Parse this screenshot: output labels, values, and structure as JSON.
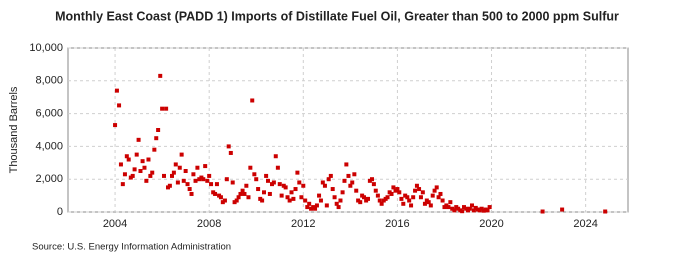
{
  "chart_data": {
    "type": "scatter",
    "title": "Monthly East Coast (PADD 1) Imports of Distillate Fuel Oil, Greater than 500 to 2000 ppm Sulfur",
    "y_label": "Thousand Barrels",
    "source": "Source: U.S. Energy Information Administration",
    "color": "#cc0000",
    "grid": true,
    "xlim": [
      2002,
      2025.8
    ],
    "ylim": [
      0,
      10000
    ],
    "xticks": [
      2004,
      2008,
      2012,
      2016,
      2020,
      2024
    ],
    "yticks": [
      0,
      {
        "value": 2000,
        "label": "2,000"
      },
      {
        "value": 4000,
        "label": "4,000"
      },
      {
        "value": 6000,
        "label": "6,000"
      },
      {
        "value": 8000,
        "label": "8,000"
      },
      {
        "value": 10000,
        "label": "10,000"
      }
    ],
    "x": [
      2004.0,
      2004.08,
      2004.17,
      2004.25,
      2004.33,
      2004.42,
      2004.5,
      2004.58,
      2004.67,
      2004.75,
      2004.83,
      2004.92,
      2005.0,
      2005.08,
      2005.17,
      2005.25,
      2005.33,
      2005.42,
      2005.5,
      2005.58,
      2005.67,
      2005.75,
      2005.83,
      2005.92,
      2006.0,
      2006.08,
      2006.17,
      2006.25,
      2006.33,
      2006.42,
      2006.5,
      2006.58,
      2006.67,
      2006.75,
      2006.83,
      2006.92,
      2007.0,
      2007.08,
      2007.17,
      2007.25,
      2007.33,
      2007.42,
      2007.5,
      2007.58,
      2007.67,
      2007.75,
      2007.83,
      2007.92,
      2008.0,
      2008.08,
      2008.17,
      2008.25,
      2008.33,
      2008.42,
      2008.5,
      2008.58,
      2008.67,
      2008.75,
      2008.83,
      2008.92,
      2009.0,
      2009.08,
      2009.17,
      2009.25,
      2009.33,
      2009.42,
      2009.5,
      2009.58,
      2009.67,
      2009.75,
      2009.83,
      2009.92,
      2010.0,
      2010.08,
      2010.17,
      2010.25,
      2010.33,
      2010.42,
      2010.5,
      2010.58,
      2010.67,
      2010.75,
      2010.83,
      2010.92,
      2011.0,
      2011.08,
      2011.17,
      2011.25,
      2011.33,
      2011.42,
      2011.5,
      2011.58,
      2011.67,
      2011.75,
      2011.83,
      2011.92,
      2012.0,
      2012.08,
      2012.17,
      2012.25,
      2012.33,
      2012.42,
      2012.5,
      2012.58,
      2012.67,
      2012.75,
      2012.83,
      2012.92,
      2013.0,
      2013.08,
      2013.17,
      2013.25,
      2013.33,
      2013.42,
      2013.5,
      2013.58,
      2013.67,
      2013.75,
      2013.83,
      2013.92,
      2014.0,
      2014.08,
      2014.17,
      2014.25,
      2014.33,
      2014.42,
      2014.5,
      2014.58,
      2014.67,
      2014.75,
      2014.83,
      2014.92,
      2015.0,
      2015.08,
      2015.17,
      2015.25,
      2015.33,
      2015.42,
      2015.5,
      2015.58,
      2015.67,
      2015.75,
      2015.83,
      2015.92,
      2016.0,
      2016.08,
      2016.17,
      2016.25,
      2016.33,
      2016.42,
      2016.5,
      2016.58,
      2016.67,
      2016.75,
      2016.83,
      2016.92,
      2017.0,
      2017.08,
      2017.17,
      2017.25,
      2017.33,
      2017.42,
      2017.5,
      2017.58,
      2017.67,
      2017.75,
      2017.83,
      2017.92,
      2018.0,
      2018.08,
      2018.17,
      2018.25,
      2018.33,
      2018.42,
      2018.5,
      2018.58,
      2018.67,
      2018.75,
      2018.83,
      2018.92,
      2019.0,
      2019.08,
      2019.17,
      2019.25,
      2019.33,
      2019.42,
      2019.5,
      2019.58,
      2019.67,
      2019.75,
      2019.83,
      2019.92,
      2022.17,
      2023.0,
      2024.83
    ],
    "values": [
      5300,
      7400,
      6500,
      2900,
      1700,
      2300,
      3400,
      3200,
      2100,
      2200,
      2600,
      3500,
      4400,
      2500,
      3100,
      2700,
      1900,
      3200,
      2200,
      2400,
      3800,
      4500,
      5000,
      8300,
      6300,
      2200,
      6300,
      1500,
      1600,
      2200,
      2400,
      2900,
      1800,
      2700,
      3500,
      1900,
      2500,
      1700,
      1400,
      1100,
      2300,
      1900,
      2700,
      2000,
      2100,
      2000,
      2800,
      1900,
      2200,
      1700,
      1200,
      1100,
      1700,
      1000,
      900,
      600,
      700,
      2000,
      4000,
      3600,
      1800,
      600,
      700,
      900,
      1100,
      1300,
      1100,
      1600,
      900,
      2700,
      6800,
      2300,
      2000,
      1400,
      800,
      700,
      1200,
      2200,
      1900,
      1100,
      1700,
      1800,
      3400,
      2700,
      1700,
      1000,
      1600,
      1500,
      900,
      700,
      1200,
      800,
      1400,
      2400,
      1800,
      900,
      1600,
      700,
      300,
      500,
      200,
      300,
      200,
      400,
      1000,
      700,
      1800,
      1600,
      400,
      2000,
      2200,
      1400,
      900,
      500,
      300,
      700,
      1200,
      1900,
      2900,
      2200,
      1600,
      1800,
      2300,
      1300,
      700,
      600,
      1000,
      900,
      700,
      800,
      1900,
      2000,
      1700,
      1300,
      1000,
      700,
      500,
      700,
      800,
      900,
      1200,
      1100,
      1500,
      1300,
      1400,
      1200,
      800,
      500,
      1000,
      900,
      700,
      400,
      900,
      1300,
      1600,
      1400,
      900,
      1200,
      500,
      700,
      600,
      400,
      1000,
      1300,
      1500,
      900,
      1100,
      700,
      300,
      400,
      300,
      600,
      200,
      100,
      300,
      200,
      100,
      50,
      300,
      200,
      100,
      200,
      400,
      100,
      250,
      150,
      100,
      200,
      80,
      150,
      100,
      300,
      30,
      150,
      30
    ]
  }
}
